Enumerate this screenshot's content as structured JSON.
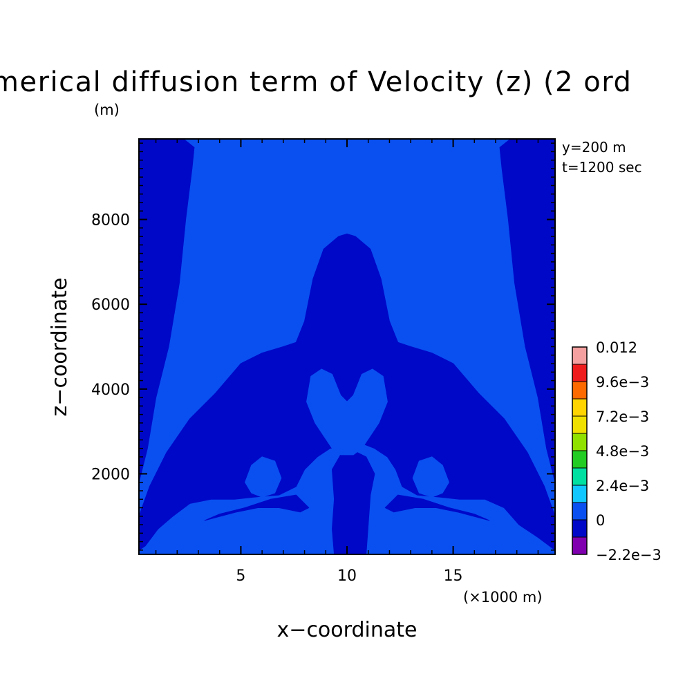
{
  "chart_data": {
    "type": "heatmap",
    "title": "merical diffusion term of Velocity (z) (2 ord",
    "xlabel": "x−coordinate",
    "ylabel": "z−coordinate",
    "x_unit": "(×1000 m)",
    "y_unit": "(m)",
    "annotations": [
      "y=200 m",
      "t=1200 sec"
    ],
    "xlim": [
      0.2,
      19.8
    ],
    "ylim": [
      100,
      9900
    ],
    "x_ticks": [
      {
        "value": 5,
        "label": "5"
      },
      {
        "value": 10,
        "label": "10"
      },
      {
        "value": 15,
        "label": "15"
      }
    ],
    "y_ticks": [
      {
        "value": 2000,
        "label": "2000"
      },
      {
        "value": 4000,
        "label": "4000"
      },
      {
        "value": 6000,
        "label": "6000"
      },
      {
        "value": 8000,
        "label": "8000"
      }
    ],
    "colorbar": {
      "labels": [
        "0.012",
        "9.6e−3",
        "7.2e−3",
        "4.8e−3",
        "2.4e−3",
        "0",
        "−2.2e−3"
      ],
      "bins_top_to_bottom": [
        "#f4a0a0",
        "#ee1c1c",
        "#ff6a00",
        "#ffd400",
        "#f0e000",
        "#90e000",
        "#22cc22",
        "#00e0a0",
        "#10c8ff",
        "#0a50f0",
        "#0008c8",
        "#8000b0"
      ]
    },
    "field_colors": {
      "zero_band": "#0a50f0",
      "negative_band": "#0008c8"
    },
    "regions_dark": [
      {
        "name": "left-column",
        "points": [
          [
            0.2,
            9900
          ],
          [
            2.3,
            9900
          ],
          [
            2.8,
            9700
          ],
          [
            2.7,
            9200
          ],
          [
            2.4,
            8000
          ],
          [
            2.1,
            6500
          ],
          [
            1.6,
            5000
          ],
          [
            1.0,
            3800
          ],
          [
            0.6,
            2600
          ],
          [
            0.2,
            1800
          ]
        ]
      },
      {
        "name": "right-column",
        "points": [
          [
            19.8,
            9900
          ],
          [
            17.7,
            9900
          ],
          [
            17.2,
            9700
          ],
          [
            17.3,
            9200
          ],
          [
            17.6,
            8000
          ],
          [
            17.9,
            6500
          ],
          [
            18.4,
            5000
          ],
          [
            19.0,
            3800
          ],
          [
            19.4,
            2600
          ],
          [
            19.8,
            1800
          ]
        ]
      },
      {
        "name": "central-plume",
        "points": [
          [
            0.2,
            1000
          ],
          [
            0.7,
            1700
          ],
          [
            1.5,
            2500
          ],
          [
            2.6,
            3300
          ],
          [
            3.8,
            3900
          ],
          [
            5.0,
            4600
          ],
          [
            6.0,
            4850
          ],
          [
            7.0,
            5000
          ],
          [
            7.6,
            5100
          ],
          [
            8.0,
            5600
          ],
          [
            8.4,
            6600
          ],
          [
            8.9,
            7300
          ],
          [
            9.6,
            7600
          ],
          [
            10.0,
            7660
          ],
          [
            10.4,
            7600
          ],
          [
            11.1,
            7300
          ],
          [
            11.6,
            6600
          ],
          [
            12.0,
            5600
          ],
          [
            12.4,
            5100
          ],
          [
            13.0,
            5000
          ],
          [
            14.0,
            4850
          ],
          [
            15.0,
            4600
          ],
          [
            16.2,
            3900
          ],
          [
            17.4,
            3300
          ],
          [
            18.5,
            2500
          ],
          [
            19.3,
            1700
          ],
          [
            19.8,
            1000
          ],
          [
            19.8,
            200
          ],
          [
            19.0,
            500
          ],
          [
            18.1,
            800
          ],
          [
            17.4,
            1200
          ],
          [
            16.5,
            1400
          ],
          [
            15.3,
            1400
          ],
          [
            14.4,
            1450
          ],
          [
            13.3,
            1500
          ],
          [
            12.6,
            1700
          ],
          [
            12.3,
            2100
          ],
          [
            11.9,
            2400
          ],
          [
            11.3,
            2600
          ],
          [
            10.8,
            2700
          ],
          [
            10.2,
            2600
          ],
          [
            9.7,
            2650
          ],
          [
            9.2,
            2600
          ],
          [
            8.6,
            2400
          ],
          [
            8.0,
            2100
          ],
          [
            7.6,
            1700
          ],
          [
            6.8,
            1500
          ],
          [
            5.6,
            1450
          ],
          [
            4.7,
            1400
          ],
          [
            3.6,
            1400
          ],
          [
            2.6,
            1300
          ],
          [
            1.8,
            1000
          ],
          [
            1.1,
            700
          ],
          [
            0.5,
            300
          ],
          [
            0.2,
            200
          ]
        ]
      },
      {
        "name": "lower-trunk",
        "points": [
          [
            9.4,
            100
          ],
          [
            10.9,
            100
          ],
          [
            11.0,
            800
          ],
          [
            11.1,
            1500
          ],
          [
            11.3,
            2000
          ],
          [
            10.9,
            2400
          ],
          [
            10.3,
            2550
          ],
          [
            9.7,
            2450
          ],
          [
            9.3,
            2100
          ],
          [
            9.4,
            1400
          ],
          [
            9.3,
            700
          ]
        ]
      },
      {
        "name": "left-wing",
        "points": [
          [
            3.3,
            900
          ],
          [
            4.8,
            1100
          ],
          [
            5.8,
            1200
          ],
          [
            6.8,
            1200
          ],
          [
            7.8,
            1100
          ],
          [
            8.2,
            1200
          ],
          [
            7.6,
            1500
          ],
          [
            6.4,
            1400
          ],
          [
            5.2,
            1200
          ],
          [
            4.0,
            1050
          ]
        ]
      },
      {
        "name": "right-wing",
        "points": [
          [
            16.7,
            900
          ],
          [
            15.2,
            1100
          ],
          [
            14.2,
            1200
          ],
          [
            13.2,
            1200
          ],
          [
            12.2,
            1100
          ],
          [
            11.8,
            1200
          ],
          [
            12.4,
            1500
          ],
          [
            13.6,
            1400
          ],
          [
            14.8,
            1200
          ],
          [
            16.0,
            1050
          ]
        ]
      }
    ],
    "regions_light": [
      {
        "name": "x-lobe",
        "points": [
          [
            8.3,
            4300
          ],
          [
            8.8,
            4470
          ],
          [
            9.3,
            4350
          ],
          [
            9.7,
            3850
          ],
          [
            10.0,
            3700
          ],
          [
            10.3,
            3850
          ],
          [
            10.7,
            4350
          ],
          [
            11.2,
            4470
          ],
          [
            11.7,
            4300
          ],
          [
            11.9,
            3700
          ],
          [
            11.5,
            3200
          ],
          [
            11.1,
            2900
          ],
          [
            10.7,
            2600
          ],
          [
            10.3,
            2450
          ],
          [
            9.7,
            2450
          ],
          [
            9.3,
            2600
          ],
          [
            8.9,
            2900
          ],
          [
            8.5,
            3200
          ],
          [
            8.1,
            3700
          ]
        ]
      },
      {
        "name": "left-blob",
        "points": [
          [
            5.2,
            1800
          ],
          [
            5.5,
            2200
          ],
          [
            6.0,
            2400
          ],
          [
            6.6,
            2300
          ],
          [
            6.9,
            1900
          ],
          [
            6.6,
            1550
          ],
          [
            6.0,
            1450
          ],
          [
            5.5,
            1550
          ]
        ]
      },
      {
        "name": "right-blob",
        "points": [
          [
            14.8,
            1800
          ],
          [
            14.5,
            2200
          ],
          [
            14.0,
            2400
          ],
          [
            13.4,
            2300
          ],
          [
            13.1,
            1900
          ],
          [
            13.4,
            1550
          ],
          [
            14.0,
            1450
          ],
          [
            14.5,
            1550
          ]
        ]
      }
    ]
  }
}
